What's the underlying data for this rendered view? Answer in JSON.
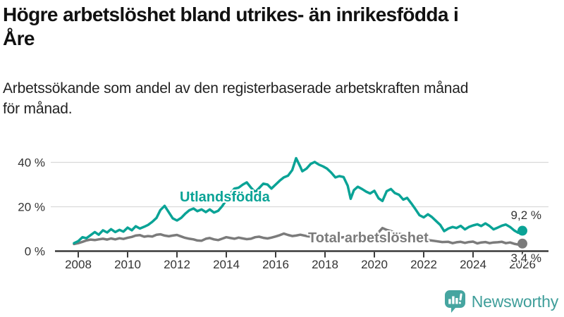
{
  "title": {
    "lines": [
      "Högre arbetslöshet bland utrikes- än inrikesfödda i",
      "Åre"
    ]
  },
  "subtitle": {
    "lines": [
      "Arbetssökande som andel av den registerbaserade arbetskraften månad",
      "för månad."
    ]
  },
  "colors": {
    "foreign_born_line": "#0aa396",
    "total_line": "#7b7b7b",
    "axis": "#3a3a3a",
    "grid": "#d9d9d9",
    "tick_label": "#333333",
    "brand_teal": "#3f9e9a"
  },
  "brand": {
    "name": "Newsworthy",
    "icon": "newsworthy-chart-bubble-icon"
  },
  "chart_data": {
    "type": "line",
    "title": "Högre arbetslöshet bland utrikes- än inrikesfödda i Åre",
    "subtitle": "Arbetssökande som andel av den registerbaserade arbetskraften månad för månad.",
    "xlabel": "",
    "ylabel": "",
    "unit": "%",
    "grid": "horizontal",
    "legend_position": "inline-labels",
    "x_axis": {
      "range": [
        2007.8,
        2027.0
      ],
      "ticks": [
        {
          "v": 2008,
          "label": "2008"
        },
        {
          "v": 2010,
          "label": "2010"
        },
        {
          "v": 2012,
          "label": "2012"
        },
        {
          "v": 2014,
          "label": "2014"
        },
        {
          "v": 2016,
          "label": "2016"
        },
        {
          "v": 2018,
          "label": "2018"
        },
        {
          "v": 2020,
          "label": "2020"
        },
        {
          "v": 2022,
          "label": "2022"
        },
        {
          "v": 2024,
          "label": "2024"
        },
        {
          "v": 2026,
          "label": "2026"
        }
      ]
    },
    "y_axis": {
      "range": [
        0,
        44
      ],
      "ticks": [
        {
          "v": 0,
          "label": "0 %"
        },
        {
          "v": 20,
          "label": "20 %"
        },
        {
          "v": 40,
          "label": "40 %"
        }
      ]
    },
    "series": [
      {
        "name": "Utlandsfödda",
        "color": "#0aa396",
        "end_value": 9.2,
        "end_label": "9,2 %",
        "points": [
          [
            2007.83,
            3.6
          ],
          [
            2008,
            4.5
          ],
          [
            2008.17,
            6.3
          ],
          [
            2008.33,
            5.8
          ],
          [
            2008.5,
            7.2
          ],
          [
            2008.67,
            8.6
          ],
          [
            2008.83,
            7.4
          ],
          [
            2009,
            9.4
          ],
          [
            2009.17,
            8.4
          ],
          [
            2009.33,
            9.9
          ],
          [
            2009.5,
            8.6
          ],
          [
            2009.67,
            9.6
          ],
          [
            2009.83,
            8.8
          ],
          [
            2010,
            10.6
          ],
          [
            2010.17,
            9.4
          ],
          [
            2010.33,
            11.2
          ],
          [
            2010.5,
            10.2
          ],
          [
            2010.67,
            11
          ],
          [
            2010.83,
            11.8
          ],
          [
            2011,
            13.2
          ],
          [
            2011.17,
            15
          ],
          [
            2011.33,
            18.5
          ],
          [
            2011.5,
            20.4
          ],
          [
            2011.67,
            17.5
          ],
          [
            2011.83,
            14.8
          ],
          [
            2012,
            13.8
          ],
          [
            2012.17,
            15
          ],
          [
            2012.33,
            16.8
          ],
          [
            2012.5,
            18.4
          ],
          [
            2012.67,
            19.2
          ],
          [
            2012.83,
            18
          ],
          [
            2013,
            18.8
          ],
          [
            2013.17,
            17.6
          ],
          [
            2013.33,
            18.8
          ],
          [
            2013.5,
            17.4
          ],
          [
            2013.67,
            18.2
          ],
          [
            2013.83,
            20.2
          ],
          [
            2014,
            23
          ],
          [
            2014.17,
            26
          ],
          [
            2014.33,
            28.2
          ],
          [
            2014.5,
            28.6
          ],
          [
            2014.67,
            30
          ],
          [
            2014.83,
            31
          ],
          [
            2015,
            28.6
          ],
          [
            2015.17,
            26.6
          ],
          [
            2015.33,
            28.4
          ],
          [
            2015.5,
            30.4
          ],
          [
            2015.67,
            30
          ],
          [
            2015.83,
            28.2
          ],
          [
            2016,
            30
          ],
          [
            2016.17,
            31.8
          ],
          [
            2016.33,
            33.2
          ],
          [
            2016.5,
            34
          ],
          [
            2016.67,
            36.5
          ],
          [
            2016.83,
            41.9
          ],
          [
            2017,
            38
          ],
          [
            2017.08,
            36
          ],
          [
            2017.25,
            37.2
          ],
          [
            2017.42,
            39.3
          ],
          [
            2017.58,
            40.2
          ],
          [
            2017.75,
            39
          ],
          [
            2017.92,
            38.2
          ],
          [
            2018.08,
            37.2
          ],
          [
            2018.25,
            35.4
          ],
          [
            2018.42,
            33.2
          ],
          [
            2018.58,
            33.8
          ],
          [
            2018.75,
            33.4
          ],
          [
            2018.92,
            29.5
          ],
          [
            2019.04,
            23.6
          ],
          [
            2019.17,
            27.5
          ],
          [
            2019.33,
            29
          ],
          [
            2019.5,
            28
          ],
          [
            2019.67,
            26.8
          ],
          [
            2019.83,
            26
          ],
          [
            2020,
            27.2
          ],
          [
            2020.17,
            23.8
          ],
          [
            2020.33,
            22.6
          ],
          [
            2020.5,
            27
          ],
          [
            2020.67,
            28
          ],
          [
            2020.83,
            26.2
          ],
          [
            2021,
            25.4
          ],
          [
            2021.17,
            23.2
          ],
          [
            2021.33,
            24
          ],
          [
            2021.5,
            21.5
          ],
          [
            2021.67,
            18.8
          ],
          [
            2021.83,
            16.2
          ],
          [
            2022,
            15.2
          ],
          [
            2022.17,
            16.6
          ],
          [
            2022.33,
            15.4
          ],
          [
            2022.5,
            13.6
          ],
          [
            2022.67,
            11.8
          ],
          [
            2022.83,
            9
          ],
          [
            2023,
            10.2
          ],
          [
            2023.17,
            10.9
          ],
          [
            2023.33,
            10.4
          ],
          [
            2023.5,
            11.4
          ],
          [
            2023.67,
            9.8
          ],
          [
            2023.83,
            10.9
          ],
          [
            2024,
            11.6
          ],
          [
            2024.17,
            12.1
          ],
          [
            2024.33,
            11.3
          ],
          [
            2024.5,
            12.5
          ],
          [
            2024.67,
            11.3
          ],
          [
            2024.83,
            9.8
          ],
          [
            2025,
            10.6
          ],
          [
            2025.17,
            11.5
          ],
          [
            2025.33,
            12
          ],
          [
            2025.5,
            10.9
          ],
          [
            2025.67,
            9.3
          ],
          [
            2025.83,
            8.3
          ],
          [
            2026,
            9.2
          ]
        ]
      },
      {
        "name": "Total arbetslöshet",
        "color": "#7b7b7b",
        "end_value": 3.4,
        "end_label": "3,4 %",
        "points": [
          [
            2007.83,
            3.2
          ],
          [
            2008,
            3.6
          ],
          [
            2008.17,
            4.2
          ],
          [
            2008.33,
            4.8
          ],
          [
            2008.5,
            5.2
          ],
          [
            2008.67,
            5
          ],
          [
            2008.83,
            5.3
          ],
          [
            2009,
            5.6
          ],
          [
            2009.17,
            5.2
          ],
          [
            2009.33,
            5.7
          ],
          [
            2009.5,
            5.3
          ],
          [
            2009.67,
            5.8
          ],
          [
            2009.83,
            5.5
          ],
          [
            2010,
            6
          ],
          [
            2010.17,
            6.4
          ],
          [
            2010.33,
            7
          ],
          [
            2010.5,
            7.2
          ],
          [
            2010.67,
            6.5
          ],
          [
            2010.83,
            6.8
          ],
          [
            2011,
            6.6
          ],
          [
            2011.17,
            7.4
          ],
          [
            2011.33,
            7.6
          ],
          [
            2011.5,
            7
          ],
          [
            2011.67,
            6.7
          ],
          [
            2011.83,
            7
          ],
          [
            2012,
            7.3
          ],
          [
            2012.17,
            6.6
          ],
          [
            2012.33,
            6
          ],
          [
            2012.5,
            5.6
          ],
          [
            2012.67,
            5.3
          ],
          [
            2012.83,
            4.8
          ],
          [
            2013,
            4.7
          ],
          [
            2013.17,
            5.6
          ],
          [
            2013.33,
            5.9
          ],
          [
            2013.5,
            5.3
          ],
          [
            2013.67,
            5
          ],
          [
            2013.83,
            5.6
          ],
          [
            2014,
            6.3
          ],
          [
            2014.17,
            5.9
          ],
          [
            2014.33,
            5.6
          ],
          [
            2014.5,
            6.1
          ],
          [
            2014.67,
            5.7
          ],
          [
            2014.83,
            5.4
          ],
          [
            2015,
            5.6
          ],
          [
            2015.17,
            6.3
          ],
          [
            2015.33,
            6.5
          ],
          [
            2015.5,
            6
          ],
          [
            2015.67,
            5.7
          ],
          [
            2015.83,
            6.1
          ],
          [
            2016,
            6.6
          ],
          [
            2016.17,
            7.2
          ],
          [
            2016.33,
            7.9
          ],
          [
            2016.5,
            7.3
          ],
          [
            2016.67,
            6.8
          ],
          [
            2016.83,
            7
          ],
          [
            2017,
            7.4
          ],
          [
            2017.25,
            6.8
          ],
          [
            2017.5,
            6.4
          ],
          [
            2017.75,
            6.7
          ],
          [
            2018,
            7
          ],
          [
            2018.25,
            6.4
          ],
          [
            2018.5,
            6
          ],
          [
            2018.75,
            6.3
          ],
          [
            2019,
            6.4
          ],
          [
            2019.25,
            5.8
          ],
          [
            2019.5,
            5.5
          ],
          [
            2019.75,
            5.8
          ],
          [
            2020,
            6.4
          ],
          [
            2020.17,
            8.5
          ],
          [
            2020.33,
            10.4
          ],
          [
            2020.5,
            9.6
          ],
          [
            2020.67,
            9
          ],
          [
            2020.83,
            8.2
          ],
          [
            2021,
            7.8
          ],
          [
            2021.25,
            7.2
          ],
          [
            2021.5,
            6.4
          ],
          [
            2021.75,
            5.8
          ],
          [
            2022,
            5.4
          ],
          [
            2022.25,
            4.9
          ],
          [
            2022.5,
            4.5
          ],
          [
            2022.75,
            4.1
          ],
          [
            2023,
            4.2
          ],
          [
            2023.17,
            3.6
          ],
          [
            2023.33,
            4
          ],
          [
            2023.5,
            4.2
          ],
          [
            2023.67,
            3.7
          ],
          [
            2023.83,
            4.1
          ],
          [
            2024,
            4.3
          ],
          [
            2024.17,
            3.5
          ],
          [
            2024.33,
            3.9
          ],
          [
            2024.5,
            4.1
          ],
          [
            2024.67,
            3.6
          ],
          [
            2024.83,
            3.9
          ],
          [
            2025,
            4
          ],
          [
            2025.17,
            4.2
          ],
          [
            2025.33,
            3.6
          ],
          [
            2025.5,
            3.9
          ],
          [
            2025.67,
            3.3
          ],
          [
            2025.83,
            3
          ],
          [
            2026,
            3.4
          ]
        ]
      }
    ]
  }
}
